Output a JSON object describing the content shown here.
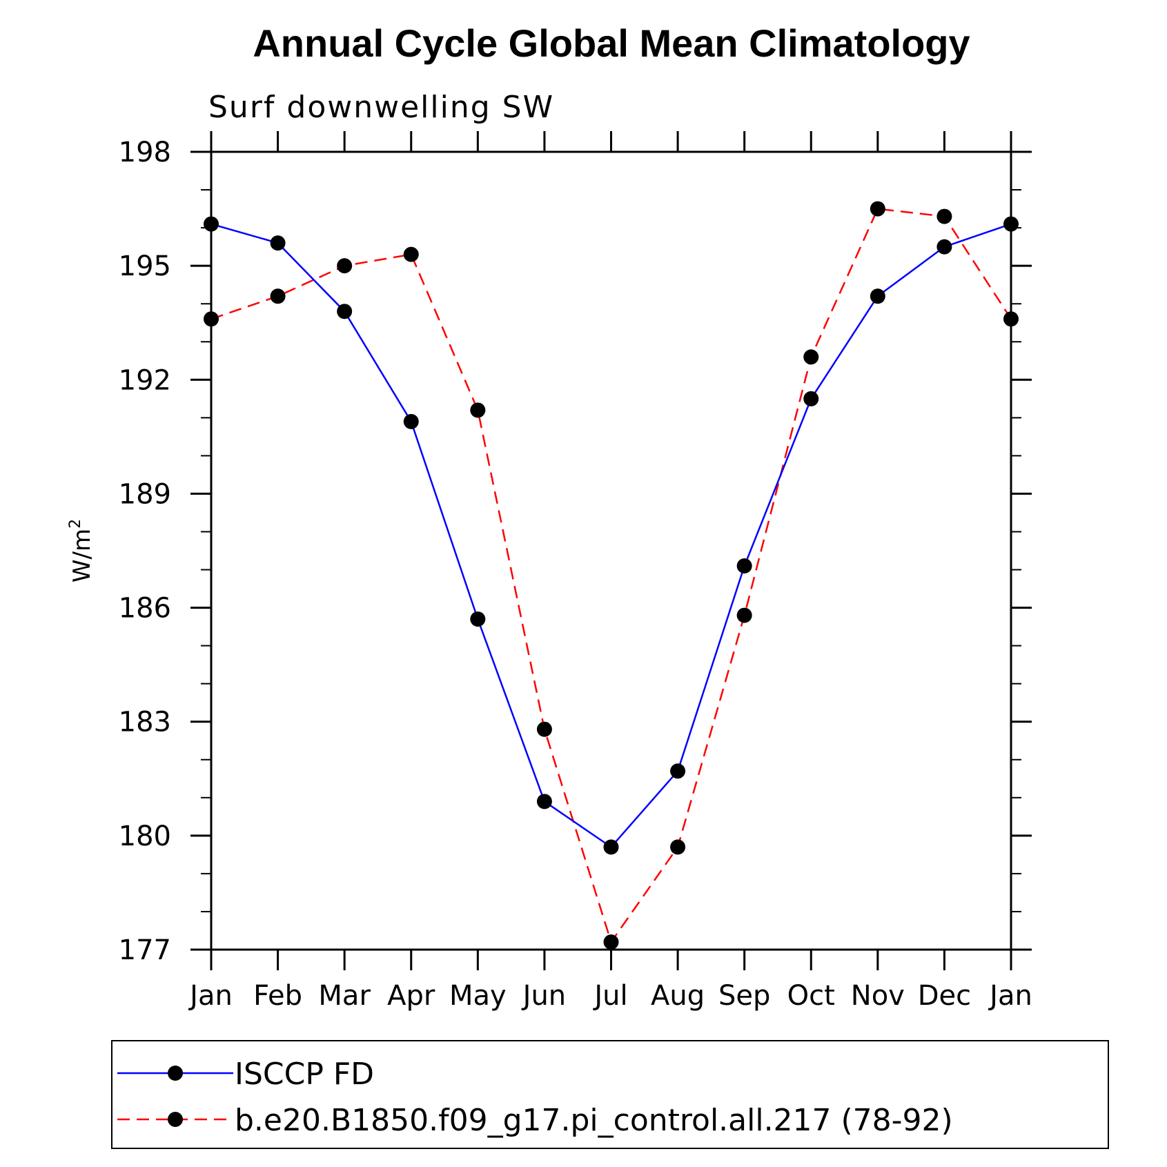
{
  "chart_data": {
    "type": "line",
    "title": "Annual Cycle Global Mean Climatology",
    "subtitle": "Surf downwelling SW",
    "xlabel": "",
    "ylabel": "W/m2",
    "ylabel_main": "W/m",
    "ylabel_sup": "2",
    "categories": [
      "Jan",
      "Feb",
      "Mar",
      "Apr",
      "May",
      "Jun",
      "Jul",
      "Aug",
      "Sep",
      "Oct",
      "Nov",
      "Dec",
      "Jan"
    ],
    "ylim": [
      177,
      198
    ],
    "yticks": [
      177,
      180,
      183,
      186,
      189,
      192,
      195,
      198
    ],
    "grid": false,
    "legend_position": "bottom",
    "series": [
      {
        "name": "ISCCP FD",
        "color": "#0000ff",
        "dash": "solid",
        "marker": "filled-circle",
        "values": [
          196.1,
          195.6,
          193.8,
          190.9,
          185.7,
          180.9,
          179.7,
          181.7,
          187.1,
          191.5,
          194.2,
          195.5,
          196.1
        ]
      },
      {
        "name": "b.e20.B1850.f09_g17.pi_control.all.217 (78-92)",
        "color": "#ff0000",
        "dash": "dashed",
        "marker": "filled-circle",
        "values": [
          193.6,
          194.2,
          195.0,
          195.3,
          191.2,
          182.8,
          177.2,
          179.7,
          185.8,
          192.6,
          196.5,
          196.3,
          193.6
        ]
      }
    ]
  }
}
